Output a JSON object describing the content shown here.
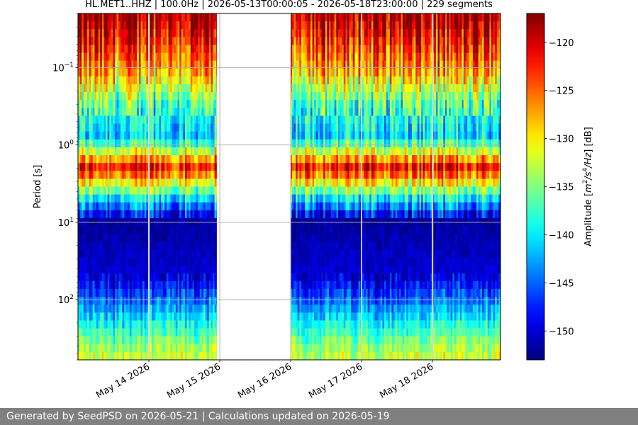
{
  "chart_data": {
    "type": "heatmap",
    "title": "HL.MET1..HHZ | 100.0Hz | 2026-05-13T00:00:05 - 2026-05-18T23:00:00 | 229 segments",
    "ylabel": "Period [s]",
    "y_scale": "log",
    "y_tick_labels": [
      {
        "value": 0.1,
        "base": "10",
        "exp": "−1"
      },
      {
        "value": 1,
        "base": "10",
        "exp": "0"
      },
      {
        "value": 10,
        "base": "10",
        "exp": "1"
      },
      {
        "value": 100,
        "base": "10",
        "exp": "2"
      }
    ],
    "ylim": [
      0.02,
      600
    ],
    "y_inverted": true,
    "x_tick_labels": [
      "May 14 2026",
      "May 15 2026",
      "May 16 2026",
      "May 17 2026",
      "May 18 2026"
    ],
    "x_ticks": [
      "2026-05-14",
      "2026-05-15",
      "2026-05-16",
      "2026-05-17",
      "2026-05-18"
    ],
    "xlim": [
      "2026-05-13T00:00:05",
      "2026-05-18T23:00:00"
    ],
    "grid": true,
    "data_gaps": [
      {
        "start": "2026-05-13T23:45:00",
        "end": "2026-05-14T00:15:00"
      },
      {
        "start": "2026-05-14T23:00:00",
        "end": "2026-05-16T00:00:00"
      },
      {
        "start": "2026-05-16T23:45:00",
        "end": "2026-05-17T00:10:00"
      },
      {
        "start": "2026-05-17T23:45:00",
        "end": "2026-05-18T00:15:00"
      }
    ],
    "colorbar": {
      "label": "Amplitude [m²/s⁴/Hz] [dB]",
      "label_parts": {
        "pre": "Amplitude [",
        "m": "m",
        "p2": "2",
        "s": "/s",
        "p4": "4",
        "hz": "/Hz",
        "post": "] [dB]"
      },
      "vmin": -153,
      "vmax": -117,
      "ticks": [
        -120,
        -125,
        -130,
        -135,
        -140,
        -145,
        -150
      ],
      "tick_labels": [
        "−120",
        "−125",
        "−130",
        "−135",
        "−140",
        "−145",
        "−150"
      ],
      "colormap": "jet"
    },
    "period_profile_db": [
      {
        "period": 0.02,
        "db": -118
      },
      {
        "period": 0.05,
        "db": -123
      },
      {
        "period": 0.1,
        "db": -127
      },
      {
        "period": 0.3,
        "db": -137
      },
      {
        "period": 0.8,
        "db": -141
      },
      {
        "period": 2,
        "db": -121
      },
      {
        "period": 5,
        "db": -140
      },
      {
        "period": 10,
        "db": -152
      },
      {
        "period": 50,
        "db": -150
      },
      {
        "period": 100,
        "db": -145
      },
      {
        "period": 300,
        "db": -136
      },
      {
        "period": 600,
        "db": -132
      }
    ]
  },
  "footer": "Generated by SeedPSD on 2026-05-21 | Calculations updated on 2026-05-19"
}
